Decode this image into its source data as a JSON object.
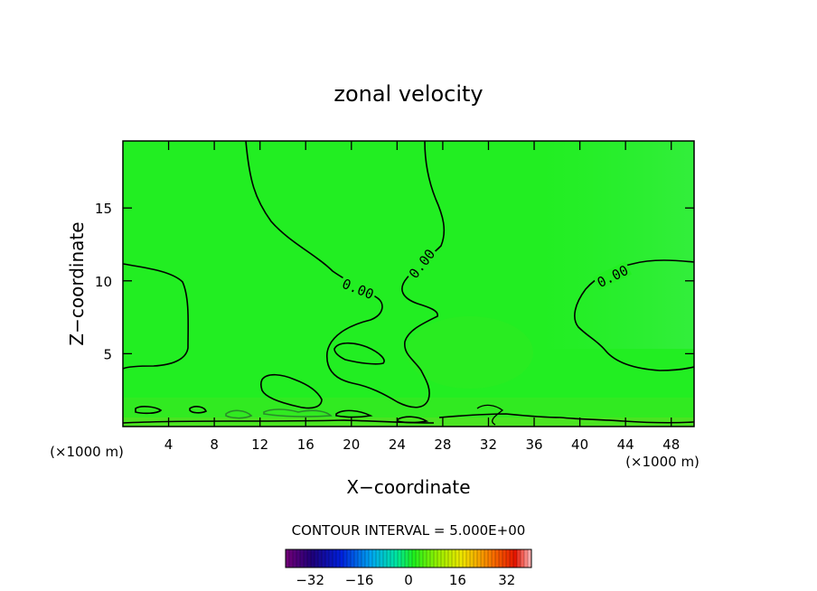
{
  "chart_data": {
    "type": "contour",
    "title": "zonal velocity",
    "xlabel": "X−coordinate",
    "ylabel": "Z−coordinate",
    "x_unit_label_left": "(×1000 m)",
    "x_unit_label_right": "(×1000 m)",
    "xlim": [
      0,
      50
    ],
    "ylim": [
      0,
      19.6
    ],
    "xticks": [
      4,
      8,
      12,
      16,
      20,
      24,
      28,
      32,
      36,
      40,
      44,
      48
    ],
    "yticks": [
      5,
      10,
      15
    ],
    "contour_interval_text": "CONTOUR INTERVAL = 5.000E+00",
    "contour_labels": [
      "0.00",
      "0.00",
      "0.00"
    ],
    "colorbar": {
      "min": -40,
      "max": 40,
      "ticks": [
        -32,
        -16,
        0,
        16,
        32
      ],
      "tick_labels": [
        "−32",
        "−16",
        "0",
        "16",
        "32"
      ]
    },
    "fill_color": "#22ee22",
    "contour_color": "#000000"
  }
}
